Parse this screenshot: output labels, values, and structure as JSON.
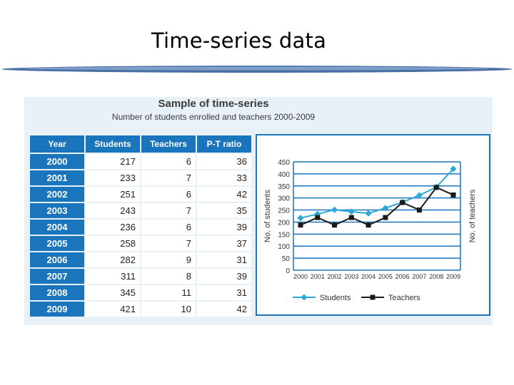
{
  "slide": {
    "title": "Time-series data"
  },
  "table": {
    "headers": [
      "Year",
      "Students",
      "Teachers",
      "P-T ratio"
    ],
    "rows": [
      {
        "year": "2000",
        "students": "217",
        "teachers": "6",
        "ratio": "36"
      },
      {
        "year": "2001",
        "students": "233",
        "teachers": "7",
        "ratio": "33"
      },
      {
        "year": "2002",
        "students": "251",
        "teachers": "6",
        "ratio": "42"
      },
      {
        "year": "2003",
        "students": "243",
        "teachers": "7",
        "ratio": "35"
      },
      {
        "year": "2004",
        "students": "236",
        "teachers": "6",
        "ratio": "39"
      },
      {
        "year": "2005",
        "students": "258",
        "teachers": "7",
        "ratio": "37"
      },
      {
        "year": "2006",
        "students": "282",
        "teachers": "9",
        "ratio": "31"
      },
      {
        "year": "2007",
        "students": "311",
        "teachers": "8",
        "ratio": "39"
      },
      {
        "year": "2008",
        "students": "345",
        "teachers": "11",
        "ratio": "31"
      },
      {
        "year": "2009",
        "students": "421",
        "teachers": "10",
        "ratio": "42"
      }
    ]
  },
  "chart_data": {
    "type": "line",
    "title": "Sample of time-series",
    "subtitle": "Number of students enrolled and teachers 2000-2009",
    "x": [
      "2000",
      "2001",
      "2002",
      "2003",
      "2004",
      "2005",
      "2006",
      "2007",
      "2008",
      "2009"
    ],
    "ylabel": "No. of students",
    "y2label": "No. of teachers",
    "ylim": [
      0,
      450
    ],
    "yticks": [
      0,
      50,
      100,
      150,
      200,
      250,
      300,
      350,
      400,
      450
    ],
    "y2lim": [
      0,
      14.4
    ],
    "grid": true,
    "legend": "bottom",
    "series": [
      {
        "name": "Students",
        "axis": "left",
        "marker": "diamond",
        "color": "#2aa8d8",
        "values": [
          217,
          233,
          251,
          243,
          236,
          258,
          282,
          311,
          345,
          421
        ]
      },
      {
        "name": "Teachers",
        "axis": "right",
        "marker": "square",
        "color": "#1a1a1a",
        "values": [
          6,
          7,
          6,
          7,
          6,
          7,
          9,
          8,
          11,
          10
        ]
      }
    ]
  },
  "colors": {
    "table_header": "#1b75bc",
    "grid": "#1b75bc",
    "students": "#2aa8d8",
    "teachers": "#1a1a1a",
    "divider": "#4a6fa5"
  }
}
